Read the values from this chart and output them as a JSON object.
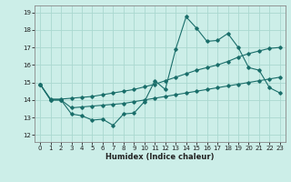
{
  "xlabel": "Humidex (Indice chaleur)",
  "xlim": [
    -0.5,
    23.5
  ],
  "ylim": [
    11.6,
    19.4
  ],
  "xticks": [
    0,
    1,
    2,
    3,
    4,
    5,
    6,
    7,
    8,
    9,
    10,
    11,
    12,
    13,
    14,
    15,
    16,
    17,
    18,
    19,
    20,
    21,
    22,
    23
  ],
  "yticks": [
    12,
    13,
    14,
    15,
    16,
    17,
    18,
    19
  ],
  "background_color": "#cceee8",
  "grid_color": "#aad8d0",
  "line_color": "#1a6e6a",
  "spiky_y": [
    14.9,
    14.0,
    14.0,
    13.2,
    13.1,
    12.85,
    12.9,
    12.55,
    13.2,
    13.25,
    13.9,
    15.1,
    14.6,
    16.9,
    18.75,
    18.1,
    17.35,
    17.4,
    17.8,
    17.0,
    15.85,
    15.7,
    14.7,
    14.4
  ],
  "upper_y": [
    14.9,
    14.05,
    14.05,
    14.1,
    14.15,
    14.2,
    14.3,
    14.4,
    14.5,
    14.6,
    14.75,
    14.9,
    15.1,
    15.3,
    15.5,
    15.7,
    15.85,
    16.0,
    16.2,
    16.45,
    16.65,
    16.8,
    16.95,
    17.0
  ],
  "lower_y": [
    14.9,
    14.0,
    14.0,
    13.55,
    13.6,
    13.65,
    13.7,
    13.75,
    13.8,
    13.9,
    14.0,
    14.1,
    14.2,
    14.3,
    14.4,
    14.5,
    14.6,
    14.7,
    14.8,
    14.9,
    15.0,
    15.1,
    15.2,
    15.3
  ]
}
